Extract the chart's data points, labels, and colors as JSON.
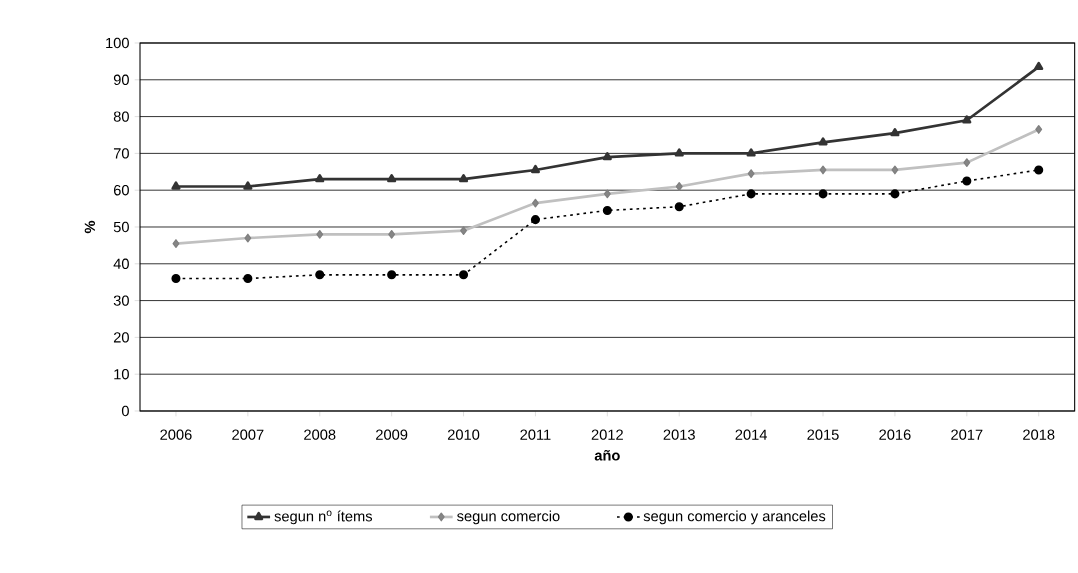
{
  "chart_data": {
    "type": "line",
    "xlabel": "año",
    "ylabel": "%",
    "categories": [
      "2006",
      "2007",
      "2008",
      "2009",
      "2010",
      "2011",
      "2012",
      "2013",
      "2014",
      "2015",
      "2016",
      "2017",
      "2018"
    ],
    "series": [
      {
        "name": "segun n$^{o}$ ítems",
        "color": "#333333",
        "marker": "triangle",
        "line_style": "solid",
        "values": [
          61,
          61,
          63,
          63,
          63,
          65.5,
          69,
          70,
          70,
          73,
          75.5,
          79,
          93.5
        ]
      },
      {
        "name": "segun comercio",
        "color": "#c0c0c0",
        "marker": "diamond",
        "line_style": "solid",
        "values": [
          45.5,
          47,
          48,
          48,
          49,
          56.5,
          59,
          61,
          64.5,
          65.5,
          65.5,
          67.5,
          76.5
        ]
      },
      {
        "name": "segun comercio y aranceles",
        "color": "#000000",
        "marker": "circle",
        "line_style": "dotted",
        "values": [
          36,
          36,
          37,
          37,
          37,
          52,
          54.5,
          55.5,
          59,
          59,
          59,
          62.5,
          65.5
        ]
      }
    ],
    "ylim": [
      0,
      100
    ],
    "yticks": [
      0,
      10,
      20,
      30,
      40,
      50,
      60,
      70,
      80,
      90,
      100
    ],
    "grid": "y",
    "legend": "bottom"
  }
}
